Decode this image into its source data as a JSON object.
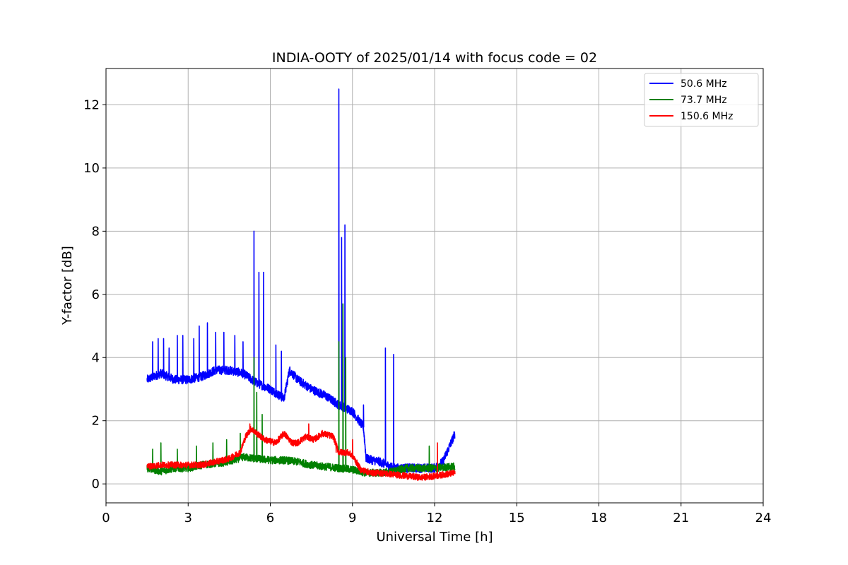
{
  "chart_data": {
    "type": "line",
    "title": "INDIA-OOTY of 2025/01/14 with focus code = 02",
    "xlabel": "Universal Time [h]",
    "ylabel": "Y-factor [dB]",
    "xlim": [
      0,
      24
    ],
    "ylim": [
      -0.6,
      13.15
    ],
    "xticks": [
      0,
      3,
      6,
      9,
      12,
      15,
      18,
      21,
      24
    ],
    "yticks": [
      0,
      2,
      4,
      6,
      8,
      10,
      12
    ],
    "grid": true,
    "legend_position": "top-right",
    "series": [
      {
        "name": "50.6 MHz",
        "color": "#0000ff",
        "base": [
          [
            1.5,
            3.3
          ],
          [
            2.0,
            3.5
          ],
          [
            2.5,
            3.3
          ],
          [
            3.0,
            3.3
          ],
          [
            3.5,
            3.4
          ],
          [
            4.0,
            3.6
          ],
          [
            4.5,
            3.6
          ],
          [
            5.0,
            3.5
          ],
          [
            5.5,
            3.2
          ],
          [
            6.0,
            3.0
          ],
          [
            6.5,
            2.7
          ],
          [
            6.7,
            3.6
          ],
          [
            7.0,
            3.3
          ],
          [
            7.5,
            3.0
          ],
          [
            8.0,
            2.8
          ],
          [
            8.5,
            2.5
          ],
          [
            9.0,
            2.3
          ],
          [
            9.4,
            1.8
          ],
          [
            9.5,
            0.8
          ],
          [
            10.0,
            0.7
          ],
          [
            10.5,
            0.5
          ],
          [
            11.0,
            0.5
          ],
          [
            11.5,
            0.5
          ],
          [
            12.0,
            0.5
          ],
          [
            12.3,
            0.7
          ],
          [
            12.5,
            1.1
          ],
          [
            12.75,
            1.6
          ]
        ],
        "spikes": [
          [
            1.7,
            4.5
          ],
          [
            1.9,
            4.6
          ],
          [
            2.1,
            4.6
          ],
          [
            2.3,
            4.3
          ],
          [
            2.6,
            4.7
          ],
          [
            2.8,
            4.7
          ],
          [
            3.2,
            4.6
          ],
          [
            3.4,
            5.0
          ],
          [
            3.7,
            5.1
          ],
          [
            4.0,
            4.8
          ],
          [
            4.3,
            4.8
          ],
          [
            4.7,
            4.7
          ],
          [
            5.0,
            4.5
          ],
          [
            5.4,
            8.0
          ],
          [
            5.58,
            6.7
          ],
          [
            5.75,
            6.7
          ],
          [
            6.2,
            4.4
          ],
          [
            6.4,
            4.2
          ],
          [
            8.5,
            12.5
          ],
          [
            8.6,
            7.8
          ],
          [
            8.72,
            8.2
          ],
          [
            9.4,
            2.5
          ],
          [
            10.2,
            4.3
          ],
          [
            10.5,
            4.1
          ]
        ],
        "noise": 0.14
      },
      {
        "name": "73.7 MHz",
        "color": "#008000",
        "base": [
          [
            1.5,
            0.5
          ],
          [
            2.0,
            0.4
          ],
          [
            2.5,
            0.5
          ],
          [
            3.0,
            0.5
          ],
          [
            3.5,
            0.6
          ],
          [
            4.0,
            0.65
          ],
          [
            4.5,
            0.7
          ],
          [
            5.0,
            0.85
          ],
          [
            5.5,
            0.8
          ],
          [
            6.0,
            0.75
          ],
          [
            6.5,
            0.75
          ],
          [
            7.0,
            0.7
          ],
          [
            7.5,
            0.6
          ],
          [
            8.0,
            0.55
          ],
          [
            8.5,
            0.5
          ],
          [
            9.0,
            0.45
          ],
          [
            9.5,
            0.35
          ],
          [
            10.0,
            0.35
          ],
          [
            10.5,
            0.4
          ],
          [
            11.0,
            0.5
          ],
          [
            11.5,
            0.5
          ],
          [
            12.0,
            0.5
          ],
          [
            12.75,
            0.55
          ]
        ],
        "spikes": [
          [
            1.7,
            1.1
          ],
          [
            2.0,
            1.3
          ],
          [
            2.6,
            1.1
          ],
          [
            3.3,
            1.2
          ],
          [
            3.9,
            1.3
          ],
          [
            4.4,
            1.4
          ],
          [
            4.9,
            1.6
          ],
          [
            5.4,
            4.0
          ],
          [
            5.5,
            2.9
          ],
          [
            5.7,
            2.2
          ],
          [
            8.5,
            4.5
          ],
          [
            8.65,
            5.7
          ],
          [
            8.75,
            4.0
          ],
          [
            11.8,
            1.2
          ]
        ],
        "noise": 0.12
      },
      {
        "name": "150.6 MHz",
        "color": "#ff0000",
        "base": [
          [
            1.5,
            0.55
          ],
          [
            2.0,
            0.6
          ],
          [
            2.5,
            0.6
          ],
          [
            3.0,
            0.6
          ],
          [
            3.5,
            0.6
          ],
          [
            4.0,
            0.7
          ],
          [
            4.5,
            0.8
          ],
          [
            4.9,
            1.0
          ],
          [
            5.1,
            1.5
          ],
          [
            5.3,
            1.75
          ],
          [
            5.5,
            1.6
          ],
          [
            5.8,
            1.4
          ],
          [
            6.2,
            1.3
          ],
          [
            6.5,
            1.6
          ],
          [
            6.8,
            1.3
          ],
          [
            7.0,
            1.3
          ],
          [
            7.3,
            1.5
          ],
          [
            7.6,
            1.4
          ],
          [
            7.9,
            1.6
          ],
          [
            8.3,
            1.5
          ],
          [
            8.5,
            1.0
          ],
          [
            8.8,
            1.0
          ],
          [
            9.0,
            0.9
          ],
          [
            9.3,
            0.45
          ],
          [
            9.7,
            0.35
          ],
          [
            10.0,
            0.35
          ],
          [
            10.5,
            0.3
          ],
          [
            11.0,
            0.25
          ],
          [
            11.5,
            0.2
          ],
          [
            12.0,
            0.25
          ],
          [
            12.75,
            0.35
          ]
        ],
        "spikes": [
          [
            5.25,
            1.9
          ],
          [
            7.4,
            1.9
          ],
          [
            8.4,
            1.0
          ],
          [
            9.0,
            1.4
          ],
          [
            12.1,
            1.3
          ]
        ],
        "noise": 0.1
      }
    ]
  }
}
